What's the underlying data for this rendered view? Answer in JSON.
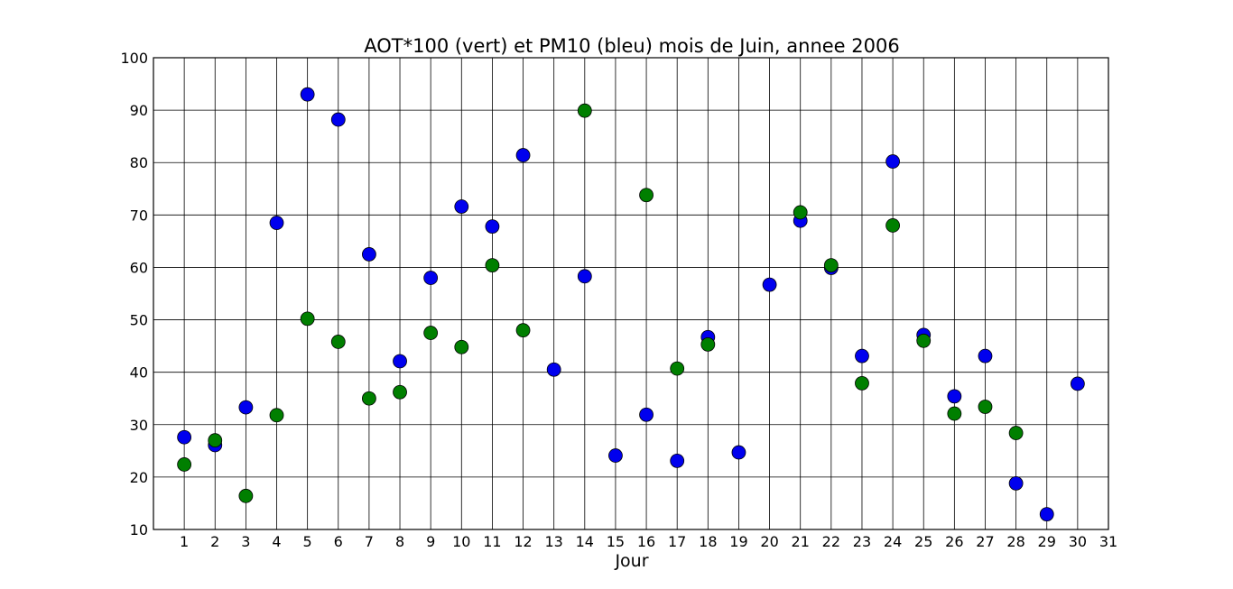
{
  "chart_data": {
    "type": "scatter",
    "title": "AOT*100 (vert) et PM10 (bleu) mois de Juin, annee 2006",
    "xlabel": "Jour",
    "ylabel": "",
    "xlim": [
      0,
      31
    ],
    "ylim": [
      10,
      100
    ],
    "x_ticks": [
      1,
      2,
      3,
      4,
      5,
      6,
      7,
      8,
      9,
      10,
      11,
      12,
      13,
      14,
      15,
      16,
      17,
      18,
      19,
      20,
      21,
      22,
      23,
      24,
      25,
      26,
      27,
      28,
      29,
      30,
      31
    ],
    "y_ticks": [
      10,
      20,
      30,
      40,
      50,
      60,
      70,
      80,
      90,
      100
    ],
    "grid": true,
    "series": [
      {
        "color": "#0000ee",
        "points": [
          [
            1,
            27.6
          ],
          [
            2,
            26.1
          ],
          [
            3,
            33.3
          ],
          [
            4,
            68.5
          ],
          [
            5,
            93.0
          ],
          [
            6,
            88.2
          ],
          [
            7,
            62.5
          ],
          [
            8,
            42.1
          ],
          [
            9,
            58.0
          ],
          [
            10,
            71.6
          ],
          [
            11,
            67.8
          ],
          [
            12,
            81.4
          ],
          [
            13,
            40.5
          ],
          [
            14,
            58.3
          ],
          [
            15,
            24.1
          ],
          [
            16,
            31.9
          ],
          [
            17,
            23.1
          ],
          [
            18,
            46.7
          ],
          [
            19,
            24.7
          ],
          [
            20,
            56.7
          ],
          [
            21,
            68.9
          ],
          [
            22,
            59.9
          ],
          [
            23,
            43.1
          ],
          [
            24,
            80.2
          ],
          [
            25,
            47.1
          ],
          [
            26,
            35.4
          ],
          [
            27,
            43.1
          ],
          [
            28,
            18.8
          ],
          [
            29,
            12.9
          ],
          [
            30,
            37.8
          ]
        ]
      },
      {
        "color": "#007f00",
        "points": [
          [
            1,
            22.4
          ],
          [
            2,
            27.0
          ],
          [
            3,
            16.4
          ],
          [
            4,
            31.8
          ],
          [
            5,
            50.2
          ],
          [
            6,
            45.8
          ],
          [
            7,
            35.0
          ],
          [
            8,
            36.2
          ],
          [
            9,
            47.5
          ],
          [
            10,
            44.8
          ],
          [
            11,
            60.4
          ],
          [
            12,
            48.0
          ],
          [
            14,
            89.9
          ],
          [
            16,
            73.8
          ],
          [
            17,
            40.7
          ],
          [
            18,
            45.3
          ],
          [
            21,
            70.5
          ],
          [
            22,
            60.4
          ],
          [
            23,
            37.9
          ],
          [
            24,
            68.0
          ],
          [
            25,
            46.0
          ],
          [
            26,
            32.1
          ],
          [
            27,
            33.4
          ],
          [
            28,
            28.4
          ]
        ]
      }
    ]
  }
}
